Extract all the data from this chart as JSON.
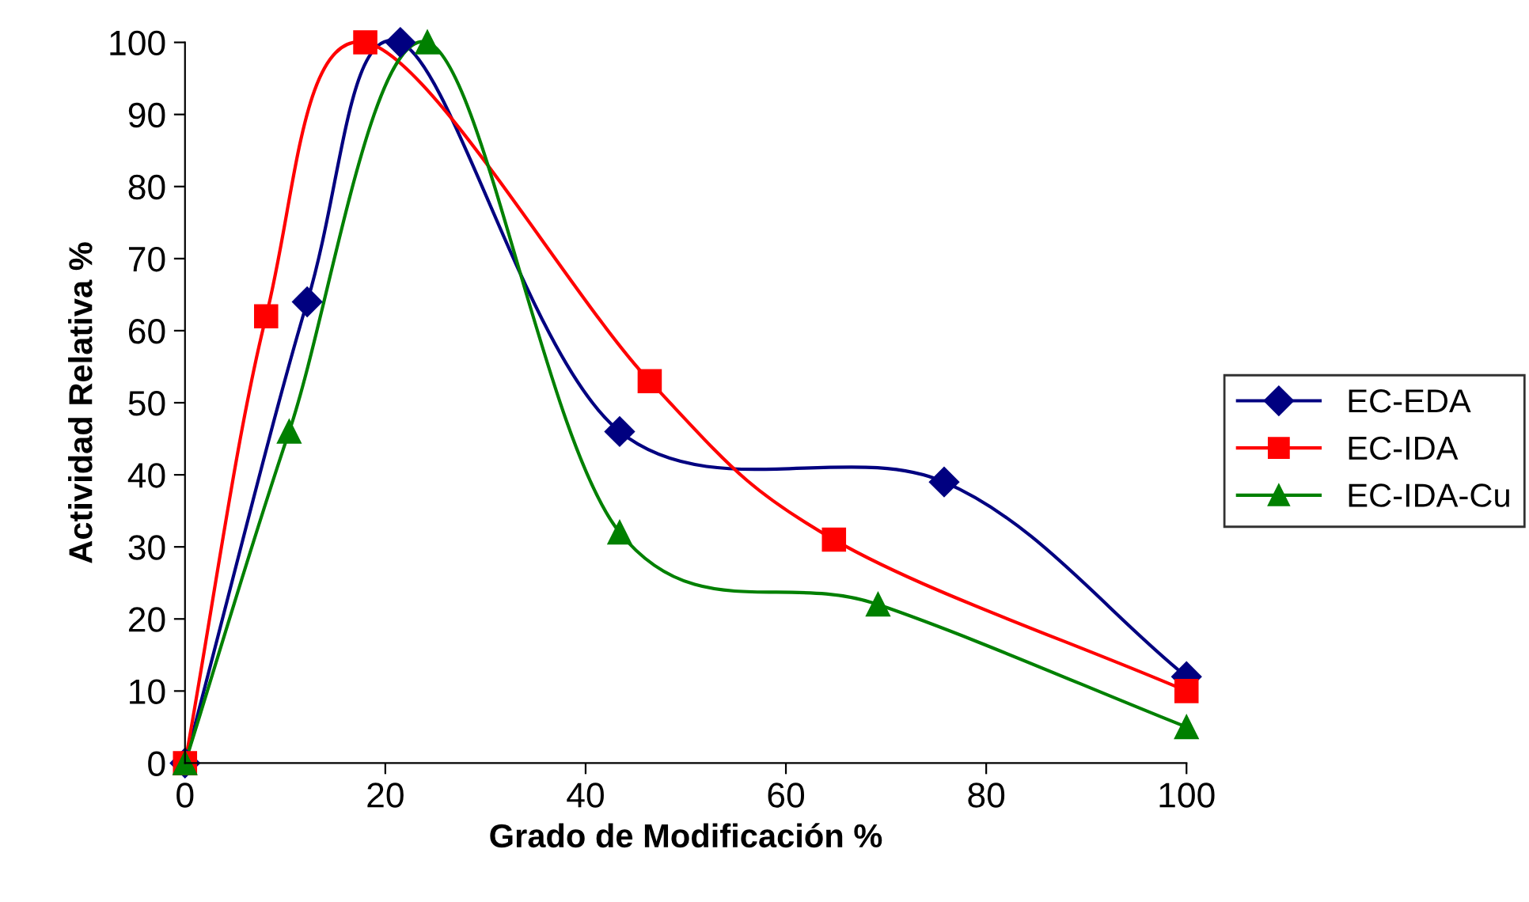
{
  "chart_data": {
    "type": "line",
    "xlabel": "Grado de Modificación %",
    "ylabel": "Actividad Relativa %",
    "xlim": [
      0,
      100
    ],
    "xticks": [
      0,
      20,
      40,
      60,
      80,
      100
    ],
    "ylim": [
      0,
      100
    ],
    "yticks": [
      0,
      10,
      20,
      30,
      40,
      50,
      60,
      70,
      80,
      90,
      100
    ],
    "grid": false,
    "legend": "right",
    "line_style": "solid",
    "series": [
      {
        "name": "EC-EDA",
        "color": "#000080",
        "marker": "diamond",
        "x": [
          0,
          12.2,
          21.5,
          43.4,
          75.8,
          100
        ],
        "values": [
          0,
          64,
          100,
          46,
          39,
          12
        ]
      },
      {
        "name": "EC-IDA",
        "color": "#ff0000",
        "marker": "square",
        "x": [
          0,
          8.1,
          18,
          46.4,
          64.8,
          100
        ],
        "values": [
          0,
          62,
          100,
          53,
          31,
          10
        ]
      },
      {
        "name": "EC-IDA-Cu",
        "color": "#008000",
        "marker": "triangle",
        "x": [
          0,
          10.4,
          24.2,
          43.4,
          69.2,
          100
        ],
        "values": [
          0,
          46,
          100,
          32,
          22,
          5
        ]
      }
    ]
  }
}
